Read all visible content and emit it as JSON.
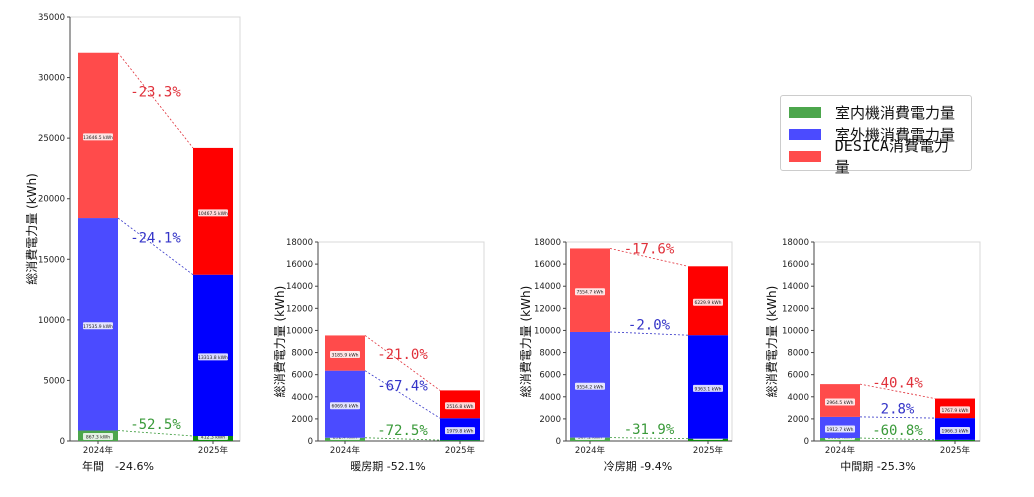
{
  "legend": [
    {
      "label": "室内機消費電力量",
      "color": "#4ca64c"
    },
    {
      "label": "室外機消費電力量",
      "color": "#4b4bff"
    },
    {
      "label": "DESICA消費電力量",
      "color": "#ff4b4b"
    }
  ],
  "colors": {
    "2024": [
      "#4ca64c",
      "#4b4bff",
      "#ff4b4b"
    ],
    "2025": [
      "#108a10",
      "#0000ff",
      "#ff0000"
    ],
    "pct": [
      "#3a9a3a",
      "#3434c8",
      "#e0303a"
    ]
  },
  "chart_data": [
    {
      "type": "bar",
      "stacked": true,
      "title": "年間　-24.6%",
      "ylabel": "総消費電力量 (kWh)",
      "categories": [
        "2024年",
        "2025年"
      ],
      "ylim": [
        0,
        35000
      ],
      "yticks": [
        0,
        5000,
        10000,
        15000,
        20000,
        25000,
        30000,
        35000
      ],
      "series": [
        {
          "name": "室内機消費電力量",
          "values": [
            867.3,
            412.3
          ],
          "labels": [
            "867.3 kWh",
            "412.3 kWh"
          ]
        },
        {
          "name": "室外機消費電力量",
          "values": [
            17535.9,
            13313.8
          ],
          "labels": [
            "17535.9 kWh",
            "13313.8 kWh"
          ]
        },
        {
          "name": "DESICA消費電力量",
          "values": [
            13646.5,
            10467.5
          ],
          "labels": [
            "13646.5 kWh",
            "10467.5 kWh"
          ]
        }
      ],
      "changes": [
        "-52.5%",
        "-24.1%",
        "-23.3%"
      ]
    },
    {
      "type": "bar",
      "stacked": true,
      "title": "暖房期 -52.1%",
      "ylabel": "総消費電力量 (kWh)",
      "categories": [
        "2024年",
        "2025年"
      ],
      "ylim": [
        0,
        18000
      ],
      "yticks": [
        0,
        2000,
        4000,
        6000,
        8000,
        10000,
        12000,
        14000,
        16000,
        18000
      ],
      "series": [
        {
          "name": "室内機消費電力量",
          "values": [
            292.4,
            80.4
          ],
          "labels": [
            "292.4 kWh",
            "80.4 kWh"
          ]
        },
        {
          "name": "室外機消費電力量",
          "values": [
            6069.6,
            1979.8
          ],
          "labels": [
            "6069.6 kWh",
            "1979.8 kWh"
          ]
        },
        {
          "name": "DESICA消費電力量",
          "values": [
            3185.9,
            2516.8
          ],
          "labels": [
            "3185.9 kWh",
            "2516.8 kWh"
          ]
        }
      ],
      "changes": [
        "-72.5%",
        "-67.4%",
        "-21.0%"
      ]
    },
    {
      "type": "bar",
      "stacked": true,
      "title": "冷房期 -9.4%",
      "ylabel": "総消費電力量 (kWh)",
      "categories": [
        "2024年",
        "2025年"
      ],
      "ylim": [
        0,
        18000
      ],
      "yticks": [
        0,
        2000,
        4000,
        6000,
        8000,
        10000,
        12000,
        14000,
        16000,
        18000
      ],
      "series": [
        {
          "name": "室内機消費電力量",
          "values": [
            307.1,
            209.1
          ],
          "labels": [
            "307.1 kWh",
            "209.1 kWh"
          ]
        },
        {
          "name": "室外機消費電力量",
          "values": [
            9554.2,
            9363.1
          ],
          "labels": [
            "9554.2 kWh",
            "9363.1 kWh"
          ]
        },
        {
          "name": "DESICA消費電力量",
          "values": [
            7554.7,
            6229.9
          ],
          "labels": [
            "7554.7 kWh",
            "6229.9 kWh"
          ]
        }
      ],
      "changes": [
        "-31.9%",
        "-2.0%",
        "-17.6%"
      ]
    },
    {
      "type": "bar",
      "stacked": true,
      "title": "中間期 -25.3%",
      "ylabel": "総消費電力量 (kWh)",
      "categories": [
        "2024年",
        "2025年"
      ],
      "ylim": [
        0,
        18000
      ],
      "yticks": [
        0,
        2000,
        4000,
        6000,
        8000,
        10000,
        12000,
        14000,
        16000,
        18000
      ],
      "series": [
        {
          "name": "室内機消費電力量",
          "values": [
            268.3,
            105.2
          ],
          "labels": [
            "268.3 kWh",
            "105.2 kWh"
          ]
        },
        {
          "name": "室外機消費電力量",
          "values": [
            1912.7,
            1966.3
          ],
          "labels": [
            "1912.7 kWh",
            "1966.3 kWh"
          ]
        },
        {
          "name": "DESICA消費電力量",
          "values": [
            2964.5,
            1767.9
          ],
          "labels": [
            "2964.5 kWh",
            "1767.9 kWh"
          ]
        }
      ],
      "changes": [
        "-60.8%",
        "2.8%",
        "-40.4%"
      ]
    }
  ]
}
